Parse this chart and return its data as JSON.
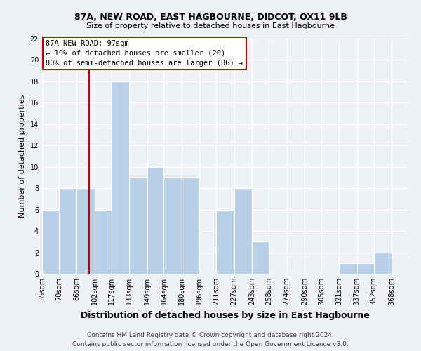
{
  "title": "87A, NEW ROAD, EAST HAGBOURNE, DIDCOT, OX11 9LB",
  "subtitle": "Size of property relative to detached houses in East Hagbourne",
  "xlabel": "Distribution of detached houses by size in East Hagbourne",
  "ylabel": "Number of detached properties",
  "bar_color": "#b8d0e8",
  "bar_edge_color": "#ffffff",
  "bin_labels": [
    "55sqm",
    "70sqm",
    "86sqm",
    "102sqm",
    "117sqm",
    "133sqm",
    "149sqm",
    "164sqm",
    "180sqm",
    "196sqm",
    "211sqm",
    "227sqm",
    "243sqm",
    "258sqm",
    "274sqm",
    "290sqm",
    "305sqm",
    "321sqm",
    "337sqm",
    "352sqm",
    "368sqm"
  ],
  "bin_edges": [
    55,
    70,
    86,
    102,
    117,
    133,
    149,
    164,
    180,
    196,
    211,
    227,
    243,
    258,
    274,
    290,
    305,
    321,
    337,
    352,
    368,
    383
  ],
  "counts": [
    6,
    8,
    8,
    6,
    18,
    9,
    10,
    9,
    9,
    0,
    6,
    8,
    3,
    0,
    0,
    0,
    0,
    1,
    1,
    2,
    0
  ],
  "property_value": 97,
  "annotation_line1": "87A NEW ROAD: 97sqm",
  "annotation_line2": "← 19% of detached houses are smaller (20)",
  "annotation_line3": "80% of semi-detached houses are larger (86) →",
  "vline_x": 97,
  "ylim": [
    0,
    22
  ],
  "yticks": [
    0,
    2,
    4,
    6,
    8,
    10,
    12,
    14,
    16,
    18,
    20,
    22
  ],
  "footer_line1": "Contains HM Land Registry data © Crown copyright and database right 2024.",
  "footer_line2": "Contains public sector information licensed under the Open Government Licence v3.0.",
  "background_color": "#eef2f7",
  "grid_color": "#ffffff",
  "vline_color": "#cc0000",
  "annotation_box_facecolor": "#ffffff",
  "annotation_box_edgecolor": "#cc0000",
  "title_fontsize": 9,
  "subtitle_fontsize": 8,
  "ylabel_fontsize": 8,
  "xlabel_fontsize": 9,
  "tick_fontsize": 7,
  "annotation_fontsize": 7.5,
  "footer_fontsize": 6.5
}
